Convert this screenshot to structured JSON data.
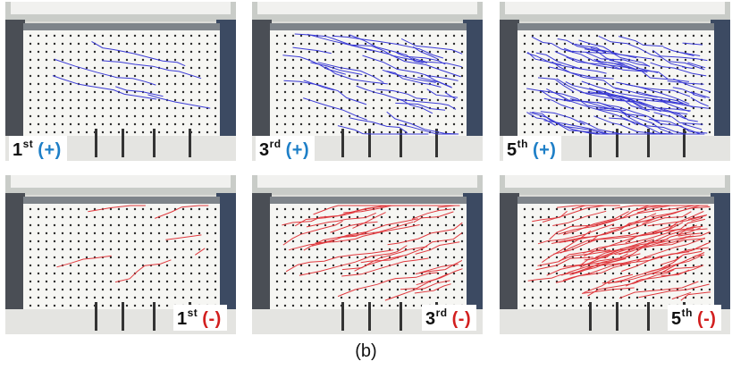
{
  "caption": "(b)",
  "colors": {
    "positive_sign": "#1e7fc7",
    "negative_sign": "#d21f1f",
    "crack_positive": "#3b3bd6",
    "crack_negative": "#e0393e"
  },
  "panels": [
    {
      "ordinal": "1",
      "suffix": "st",
      "sign": "(+)",
      "polarity": "pos",
      "crack_density": "low"
    },
    {
      "ordinal": "3",
      "suffix": "rd",
      "sign": "(+)",
      "polarity": "pos",
      "crack_density": "medium"
    },
    {
      "ordinal": "5",
      "suffix": "th",
      "sign": "(+)",
      "polarity": "pos",
      "crack_density": "high"
    },
    {
      "ordinal": "1",
      "suffix": "st",
      "sign": "(-)",
      "polarity": "neg",
      "crack_density": "low"
    },
    {
      "ordinal": "3",
      "suffix": "rd",
      "sign": "(-)",
      "polarity": "neg",
      "crack_density": "medium"
    },
    {
      "ordinal": "5",
      "suffix": "th",
      "sign": "(-)",
      "polarity": "neg",
      "crack_density": "high"
    }
  ]
}
